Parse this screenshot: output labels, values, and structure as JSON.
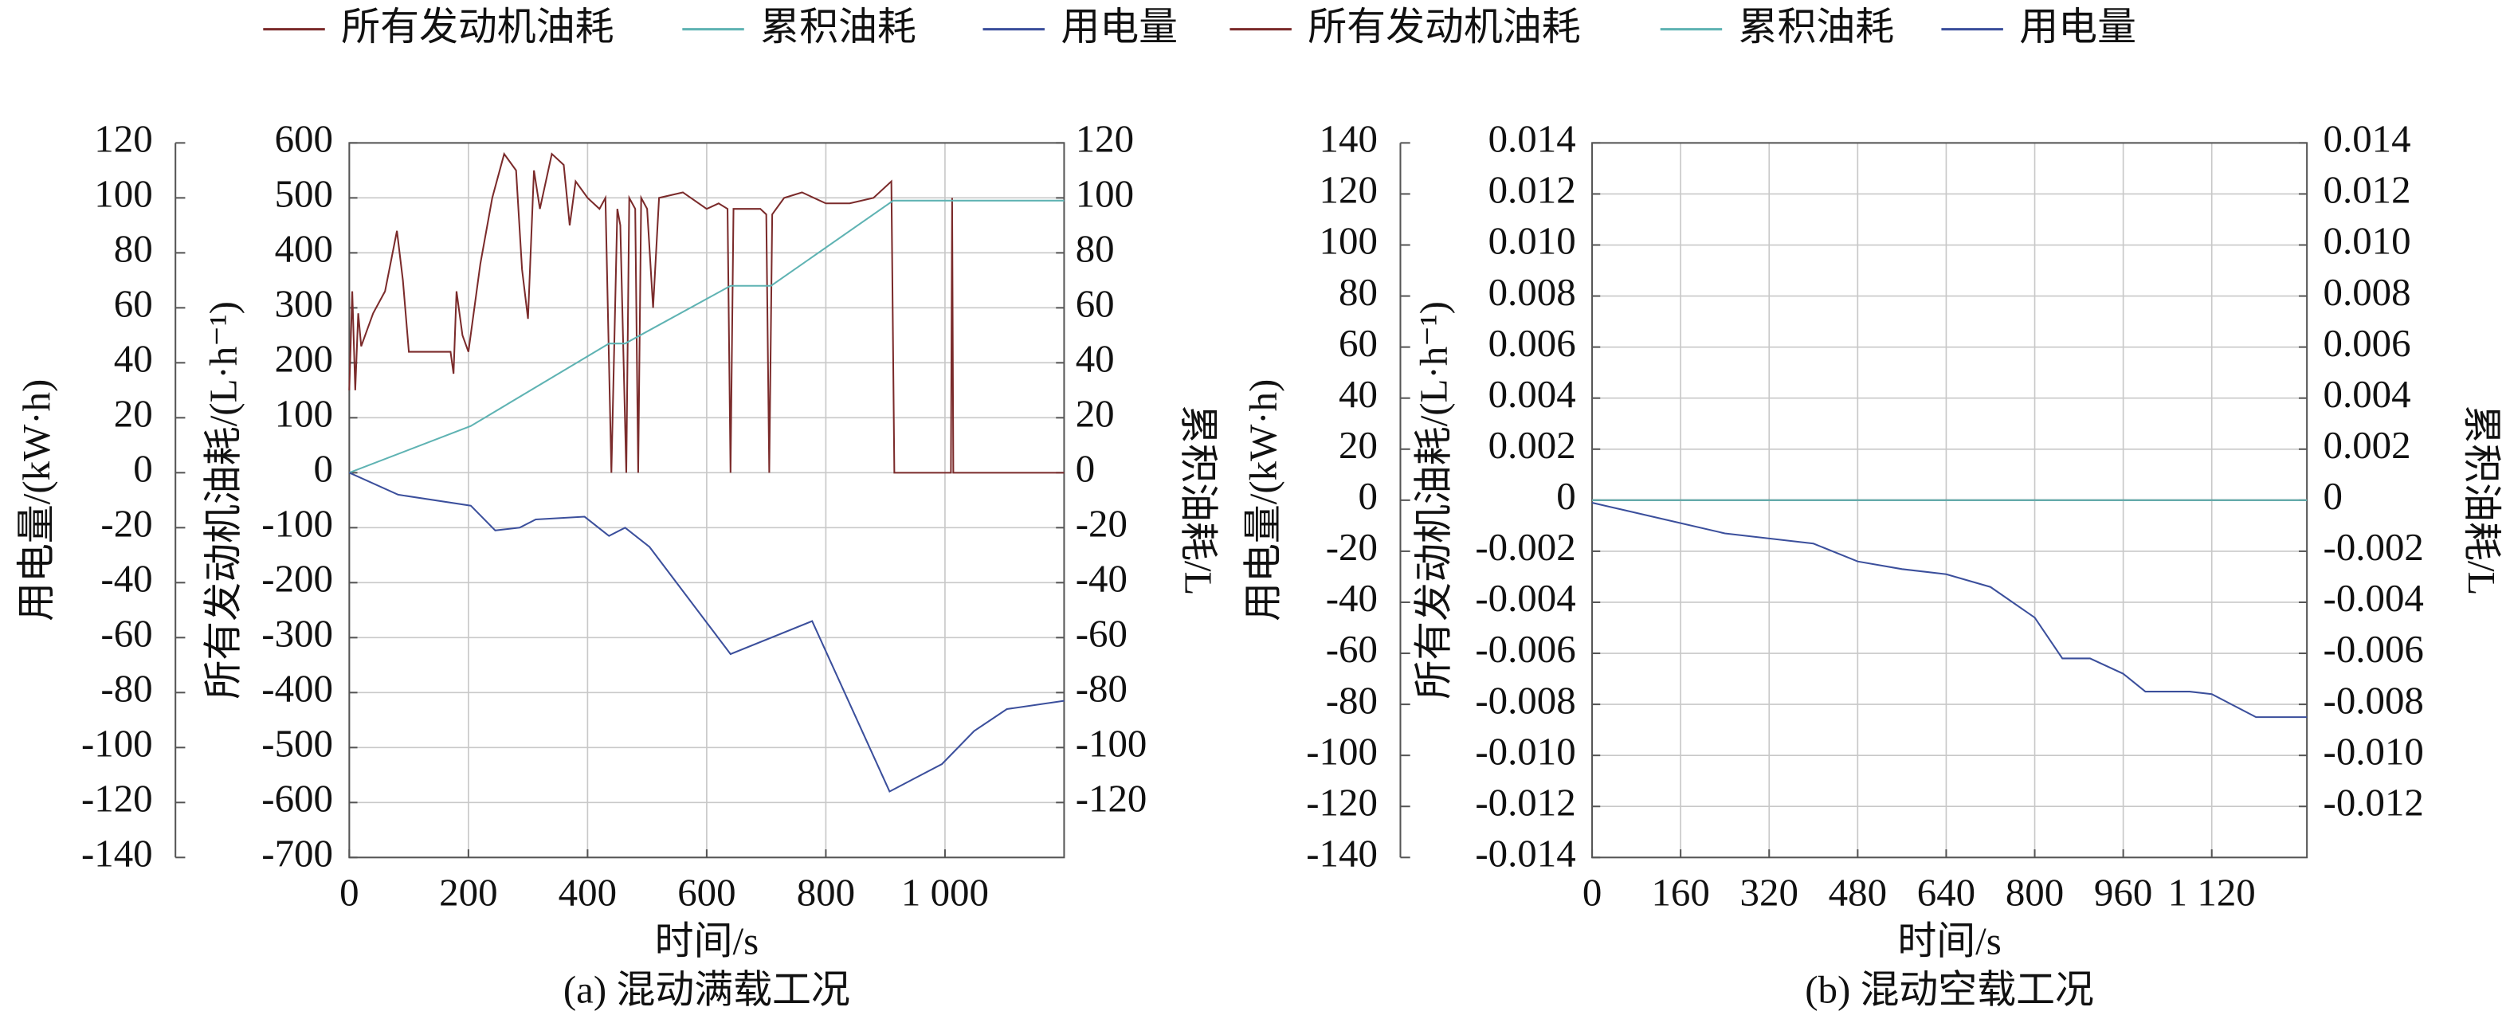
{
  "chart_data": [
    {
      "type": "line",
      "caption": "(a) 混动满载工况",
      "xlabel": "时间/s",
      "ylabel": "用电量/(kW·h)",
      "y3label": "所有发动机油耗/(L·h⁻¹)",
      "y2label": "累积油耗/L",
      "xlim": [
        0,
        1200
      ],
      "xticks": [
        0,
        200,
        400,
        600,
        800,
        {
          "value": 1000,
          "label": "1 000"
        }
      ],
      "ylim": [
        -140,
        120
      ],
      "yticks": [
        -140,
        -120,
        -100,
        -80,
        -60,
        -40,
        -20,
        0,
        20,
        40,
        60,
        80,
        100,
        120
      ],
      "y3lim": [
        -700,
        600
      ],
      "y3ticks": [
        -700,
        -600,
        -500,
        -400,
        -300,
        -200,
        -100,
        0,
        100,
        200,
        300,
        400,
        500,
        600
      ],
      "y2lim": [
        -140,
        120
      ],
      "y2ticks": [
        -120,
        -100,
        -80,
        -60,
        -40,
        -20,
        0,
        20,
        40,
        60,
        80,
        100,
        120
      ],
      "grid": true,
      "series": [
        {
          "name": "所有发动机油耗",
          "color": "#7b2b2b",
          "axis": "y3",
          "x": [
            0,
            5,
            10,
            15,
            20,
            30,
            40,
            60,
            80,
            90,
            100,
            150,
            170,
            175,
            180,
            190,
            200,
            220,
            240,
            260,
            280,
            290,
            300,
            310,
            320,
            340,
            360,
            370,
            380,
            400,
            420,
            430,
            440,
            450,
            455,
            465,
            470,
            480,
            485,
            490,
            500,
            510,
            520,
            560,
            600,
            620,
            635,
            640,
            645,
            690,
            700,
            705,
            710,
            730,
            760,
            800,
            840,
            880,
            910,
            915,
            1010,
            1012,
            1014,
            1200
          ],
          "values": [
            150,
            330,
            150,
            290,
            230,
            260,
            290,
            330,
            440,
            350,
            220,
            220,
            220,
            180,
            330,
            250,
            220,
            380,
            500,
            580,
            550,
            370,
            280,
            550,
            480,
            580,
            560,
            450,
            530,
            500,
            480,
            500,
            0,
            480,
            450,
            0,
            500,
            480,
            0,
            500,
            480,
            300,
            500,
            510,
            480,
            490,
            480,
            0,
            480,
            480,
            470,
            0,
            470,
            500,
            510,
            490,
            490,
            500,
            530,
            0,
            0,
            500,
            0,
            0
          ]
        },
        {
          "name": "累积油耗",
          "color": "#5fb3b3",
          "axis": "y2",
          "x": [
            0,
            204,
            436,
            463,
            640,
            708,
            913,
            1200
          ],
          "values": [
            0,
            17,
            47,
            47,
            68,
            68,
            99,
            99
          ]
        },
        {
          "name": "用电量",
          "color": "#3b4f9c",
          "axis": "y",
          "x": [
            0,
            82,
            204,
            245,
            286,
            313,
            395,
            436,
            463,
            504,
            640,
            777,
            907,
            995,
            1049,
            1104,
            1200
          ],
          "values": [
            0,
            -8,
            -12,
            -21,
            -20,
            -17,
            -16,
            -23,
            -20,
            -27,
            -66,
            -54,
            -116,
            -106,
            -94,
            -86,
            -83
          ]
        }
      ]
    },
    {
      "type": "line",
      "caption": "(b) 混动空载工况",
      "xlabel": "时间/s",
      "ylabel": "用电量/(kW·h)",
      "y3label": "所有发动机油耗/(L·h⁻¹)",
      "y2label": "累积油耗/L",
      "xlim": [
        0,
        1292
      ],
      "xticks": [
        0,
        160,
        320,
        480,
        640,
        800,
        960,
        {
          "value": 1120,
          "label": "1 120"
        }
      ],
      "ylim": [
        -140,
        140
      ],
      "yticks": [
        -140,
        -120,
        -100,
        -80,
        -60,
        -40,
        -20,
        0,
        20,
        40,
        60,
        80,
        100,
        120,
        140
      ],
      "y3lim": [
        -0.014,
        0.014
      ],
      "y3ticks": [
        -0.014,
        -0.012,
        {
          "value": -0.01,
          "label": "-0.010"
        },
        -0.008,
        -0.006,
        -0.004,
        -0.002,
        0,
        0.002,
        0.004,
        0.006,
        0.008,
        {
          "value": 0.01,
          "label": "0.010"
        },
        0.012,
        0.014
      ],
      "y2lim": [
        -0.014,
        0.014
      ],
      "y2ticks": [
        -0.012,
        {
          "value": -0.01,
          "label": "-0.010"
        },
        -0.008,
        -0.006,
        -0.004,
        -0.002,
        0,
        0.002,
        0.004,
        0.006,
        0.008,
        {
          "value": 0.01,
          "label": "0.010"
        },
        0.012,
        0.014
      ],
      "grid": true,
      "series": [
        {
          "name": "所有发动机油耗",
          "color": "#7b2b2b",
          "axis": "y3",
          "x": [
            0,
            1292
          ],
          "values": [
            0,
            0
          ]
        },
        {
          "name": "累积油耗",
          "color": "#5fb3b3",
          "axis": "y2",
          "x": [
            0,
            1292
          ],
          "values": [
            0,
            0
          ]
        },
        {
          "name": "用电量",
          "color": "#3b4f9c",
          "axis": "y",
          "x": [
            0,
            160,
            240,
            320,
            400,
            480,
            560,
            640,
            720,
            800,
            850,
            900,
            960,
            1000,
            1080,
            1120,
            1200,
            1292
          ],
          "values": [
            -1,
            -9,
            -13,
            -15,
            -17,
            -24,
            -27,
            -29,
            -34,
            -46,
            -62,
            -62,
            -68,
            -75,
            -75,
            -76,
            -85,
            -85
          ]
        }
      ]
    }
  ]
}
